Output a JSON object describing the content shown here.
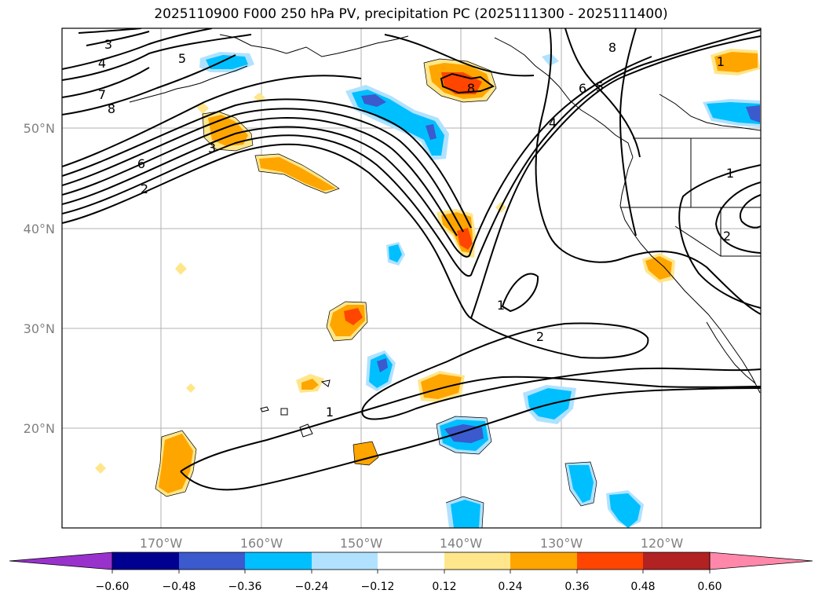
{
  "title": "2025110900 F000 250 hPa PV, precipitation PC (2025111300 - 2025111400)",
  "lat_labels": [
    "50°N",
    "40°N",
    "30°N",
    "20°N"
  ],
  "lon_labels": [
    "170°W",
    "160°W",
    "150°W",
    "140°W",
    "130°W",
    "120°W"
  ],
  "pv_contour_labels": [
    "3",
    "4",
    "5",
    "7",
    "8",
    "6",
    "2",
    "3",
    "8",
    "1",
    "4",
    "5",
    "6",
    "8",
    "1",
    "2",
    "1",
    "2",
    "1"
  ],
  "colorbar": {
    "ticks": [
      "−0.60",
      "−0.48",
      "−0.36",
      "−0.24",
      "−0.12",
      "0.12",
      "0.24",
      "0.36",
      "0.48",
      "0.60"
    ],
    "colors": [
      "#9932cc",
      "#000090",
      "#3a5acd",
      "#00bfff",
      "#b0e2ff",
      "#ffffff",
      "#ffe68a",
      "#ffa500",
      "#ff4500",
      "#b22222",
      "#ff88aa"
    ]
  },
  "legend_colors": {
    "pos_light": "#ffe68a",
    "pos_mid": "#ffa500",
    "pos_strong": "#ff4500",
    "neg_light": "#b0e2ff",
    "neg_mid": "#00bfff",
    "neg_strong": "#3a5acd"
  }
}
